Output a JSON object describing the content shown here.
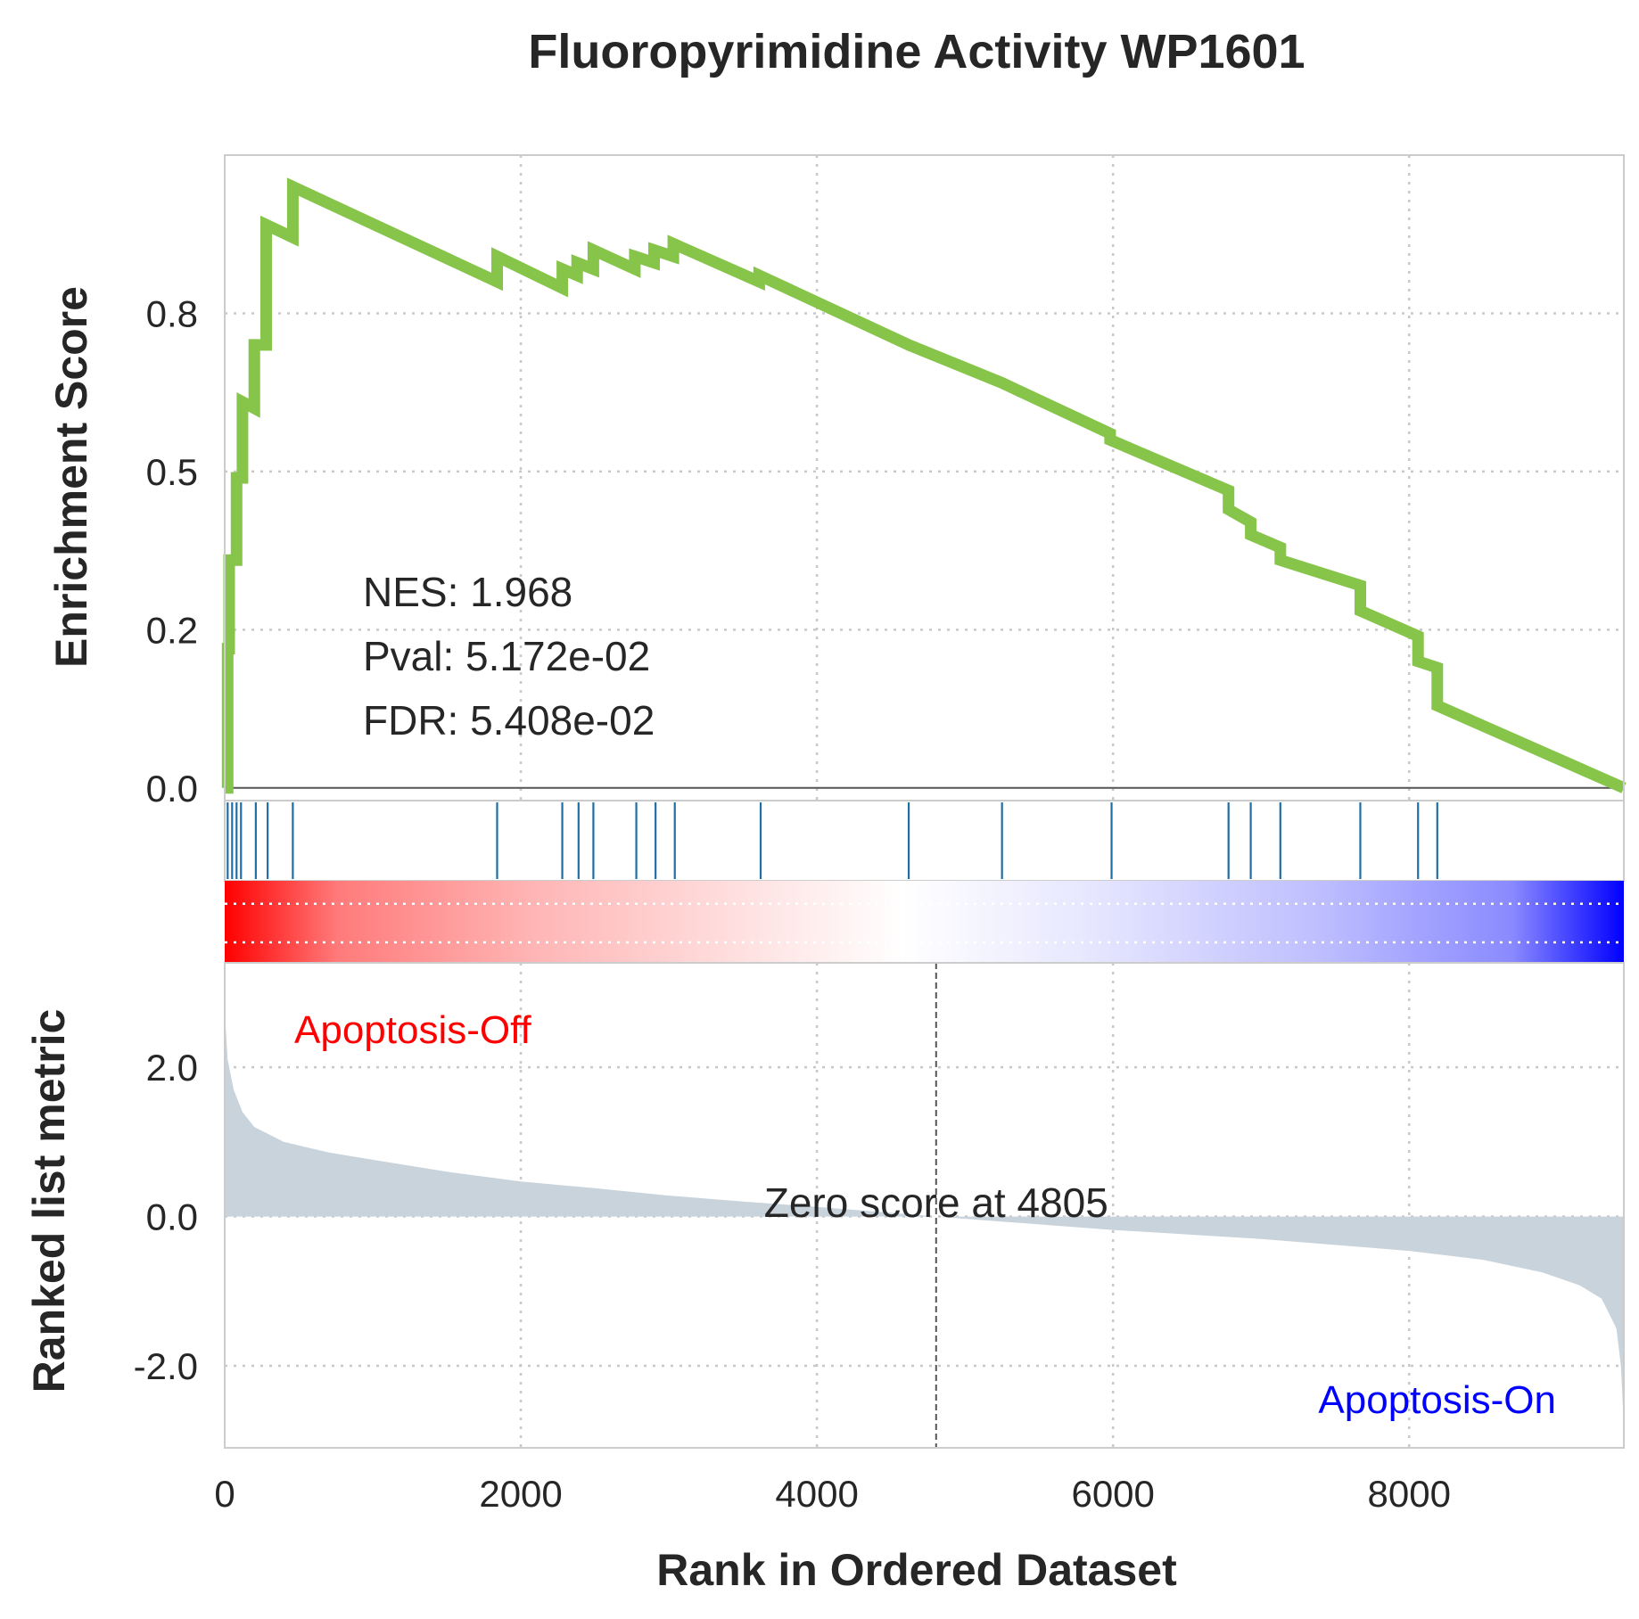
{
  "chart_data": {
    "type": "line",
    "title": "Fluoropyrimidine Activity WP1601",
    "xlabel": "Rank in Ordered Dataset",
    "xlim": [
      0,
      9450
    ],
    "x_ticks": [
      0,
      2000,
      4000,
      6000,
      8000
    ],
    "colors": {
      "es_line": "#86c44a",
      "hits": "#1f6fa5",
      "metric_fill": "#c8d3dc",
      "pos_label": "#ff0000",
      "neg_label": "#0000ff"
    },
    "enrichment": {
      "ylabel": "Enrichment Score",
      "ylim": [
        -0.02,
        1.0
      ],
      "y_ticks": [
        {
          "value": 0.0,
          "label": "0.0"
        },
        {
          "value": 0.25,
          "label": "0.2"
        },
        {
          "value": 0.5,
          "label": "0.5"
        },
        {
          "value": 0.75,
          "label": "0.8"
        }
      ],
      "stats": {
        "nes": "NES: 1.968",
        "pval": "Pval: 5.172e-02",
        "fdr": "FDR: 5.408e-02"
      },
      "points": [
        [
          0,
          0.0
        ],
        [
          20,
          0.0
        ],
        [
          20,
          0.22
        ],
        [
          30,
          0.22
        ],
        [
          30,
          0.36
        ],
        [
          80,
          0.36
        ],
        [
          80,
          0.49
        ],
        [
          120,
          0.49
        ],
        [
          120,
          0.61
        ],
        [
          200,
          0.6
        ],
        [
          200,
          0.7
        ],
        [
          280,
          0.7
        ],
        [
          280,
          0.89
        ],
        [
          460,
          0.87
        ],
        [
          460,
          0.95
        ],
        [
          1840,
          0.8
        ],
        [
          1840,
          0.84
        ],
        [
          2280,
          0.79
        ],
        [
          2280,
          0.82
        ],
        [
          2380,
          0.81
        ],
        [
          2380,
          0.83
        ],
        [
          2490,
          0.82
        ],
        [
          2490,
          0.85
        ],
        [
          2770,
          0.82
        ],
        [
          2770,
          0.84
        ],
        [
          2900,
          0.83
        ],
        [
          2900,
          0.85
        ],
        [
          3030,
          0.84
        ],
        [
          3030,
          0.86
        ],
        [
          3610,
          0.8
        ],
        [
          3610,
          0.81
        ],
        [
          4620,
          0.7
        ],
        [
          5250,
          0.64
        ],
        [
          5980,
          0.56
        ],
        [
          5980,
          0.55
        ],
        [
          6780,
          0.47
        ],
        [
          6780,
          0.44
        ],
        [
          6930,
          0.42
        ],
        [
          6930,
          0.4
        ],
        [
          7130,
          0.38
        ],
        [
          7130,
          0.36
        ],
        [
          7670,
          0.32
        ],
        [
          7670,
          0.28
        ],
        [
          8060,
          0.24
        ],
        [
          8060,
          0.2
        ],
        [
          8190,
          0.19
        ],
        [
          8190,
          0.13
        ],
        [
          9450,
          0.0
        ]
      ]
    },
    "hits": [
      20,
      50,
      80,
      110,
      210,
      290,
      460,
      1840,
      2280,
      2390,
      2490,
      2780,
      2910,
      3040,
      3620,
      4620,
      5250,
      5990,
      6780,
      6930,
      7130,
      7670,
      8060,
      8190
    ],
    "ranked_metric": {
      "ylabel": "Ranked list metric",
      "ylim": [
        -3.1,
        3.4
      ],
      "y_ticks": [
        {
          "value": 2.0,
          "label": "2.0"
        },
        {
          "value": 0.0,
          "label": "0.0"
        },
        {
          "value": -2.0,
          "label": "-2.0"
        }
      ],
      "zero_cross": 4805,
      "zero_label": "Zero score at 4805",
      "positive_label": "Apoptosis-Off",
      "negative_label": "Apoptosis-On",
      "profile": [
        [
          0,
          3.3
        ],
        [
          5,
          2.6
        ],
        [
          20,
          2.1
        ],
        [
          60,
          1.7
        ],
        [
          120,
          1.4
        ],
        [
          200,
          1.2
        ],
        [
          400,
          1.0
        ],
        [
          700,
          0.86
        ],
        [
          1000,
          0.76
        ],
        [
          1500,
          0.6
        ],
        [
          2000,
          0.47
        ],
        [
          2500,
          0.38
        ],
        [
          3000,
          0.28
        ],
        [
          3500,
          0.2
        ],
        [
          4000,
          0.13
        ],
        [
          4500,
          0.05
        ],
        [
          4805,
          0.0
        ],
        [
          5200,
          -0.06
        ],
        [
          5600,
          -0.12
        ],
        [
          6000,
          -0.18
        ],
        [
          6500,
          -0.24
        ],
        [
          7000,
          -0.3
        ],
        [
          7500,
          -0.38
        ],
        [
          8000,
          -0.46
        ],
        [
          8500,
          -0.58
        ],
        [
          8900,
          -0.75
        ],
        [
          9150,
          -0.92
        ],
        [
          9300,
          -1.1
        ],
        [
          9400,
          -1.5
        ],
        [
          9430,
          -2.0
        ],
        [
          9450,
          -2.8
        ]
      ]
    }
  }
}
